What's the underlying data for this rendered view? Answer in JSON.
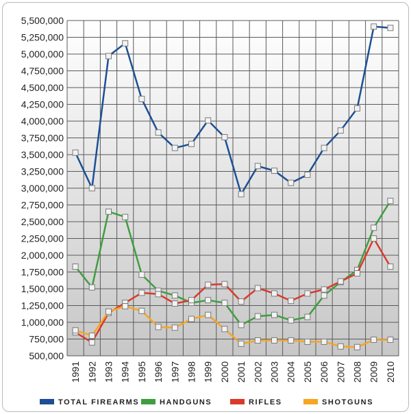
{
  "chart_data": {
    "type": "line",
    "x": [
      "1991",
      "1992",
      "1993",
      "1994",
      "1995",
      "1996",
      "1997",
      "1998",
      "1999",
      "2000",
      "2001",
      "2002",
      "2003",
      "2004",
      "2005",
      "2006",
      "2007",
      "2008",
      "2009",
      "2010"
    ],
    "ylim": [
      500000,
      5500000
    ],
    "yticks": [
      500000,
      750000,
      1000000,
      1250000,
      1500000,
      1750000,
      2000000,
      2250000,
      2500000,
      2750000,
      3000000,
      3250000,
      3500000,
      3750000,
      4000000,
      4250000,
      4500000,
      4750000,
      5000000,
      5250000,
      5500000
    ],
    "ytick_labels": [
      "500,000",
      "750,000",
      "1,000,000",
      "1,250,000",
      "1,500,000",
      "1,750,000",
      "2,000,000",
      "2,250,000",
      "2,500,000",
      "2,750,000",
      "3,000,000",
      "3,250,000",
      "3,500,000",
      "3,750,000",
      "4,000,000",
      "4,250,000",
      "4,500,000",
      "4,750,000",
      "5,000,000",
      "5,250,000",
      "5,500,000"
    ],
    "grid": true,
    "legend_position": "bottom",
    "series": [
      {
        "name": "Total Firearms",
        "color": "#1c4f94",
        "values": [
          3530000,
          3000000,
          4970000,
          5160000,
          4330000,
          3830000,
          3600000,
          3660000,
          4010000,
          3760000,
          2910000,
          3330000,
          3260000,
          3080000,
          3200000,
          3600000,
          3860000,
          4190000,
          5410000,
          5390000
        ]
      },
      {
        "name": "Handguns",
        "color": "#3f9e3f",
        "values": [
          1830000,
          1520000,
          2650000,
          2570000,
          1710000,
          1470000,
          1400000,
          1290000,
          1330000,
          1290000,
          960000,
          1090000,
          1110000,
          1030000,
          1080000,
          1400000,
          1600000,
          1780000,
          2410000,
          2810000
        ]
      },
      {
        "name": "Rifles",
        "color": "#d93a2b",
        "values": [
          850000,
          700000,
          1140000,
          1290000,
          1440000,
          1420000,
          1280000,
          1330000,
          1560000,
          1570000,
          1310000,
          1510000,
          1430000,
          1320000,
          1430000,
          1490000,
          1610000,
          1730000,
          2250000,
          1830000
        ]
      },
      {
        "name": "Shotguns",
        "color": "#f5a623",
        "values": [
          880000,
          800000,
          1160000,
          1240000,
          1170000,
          930000,
          920000,
          1050000,
          1110000,
          900000,
          680000,
          730000,
          730000,
          730000,
          710000,
          710000,
          640000,
          630000,
          740000,
          740000
        ]
      }
    ],
    "legend": [
      "Total Firearms",
      "Handguns",
      "Rifles",
      "Shotguns"
    ]
  }
}
